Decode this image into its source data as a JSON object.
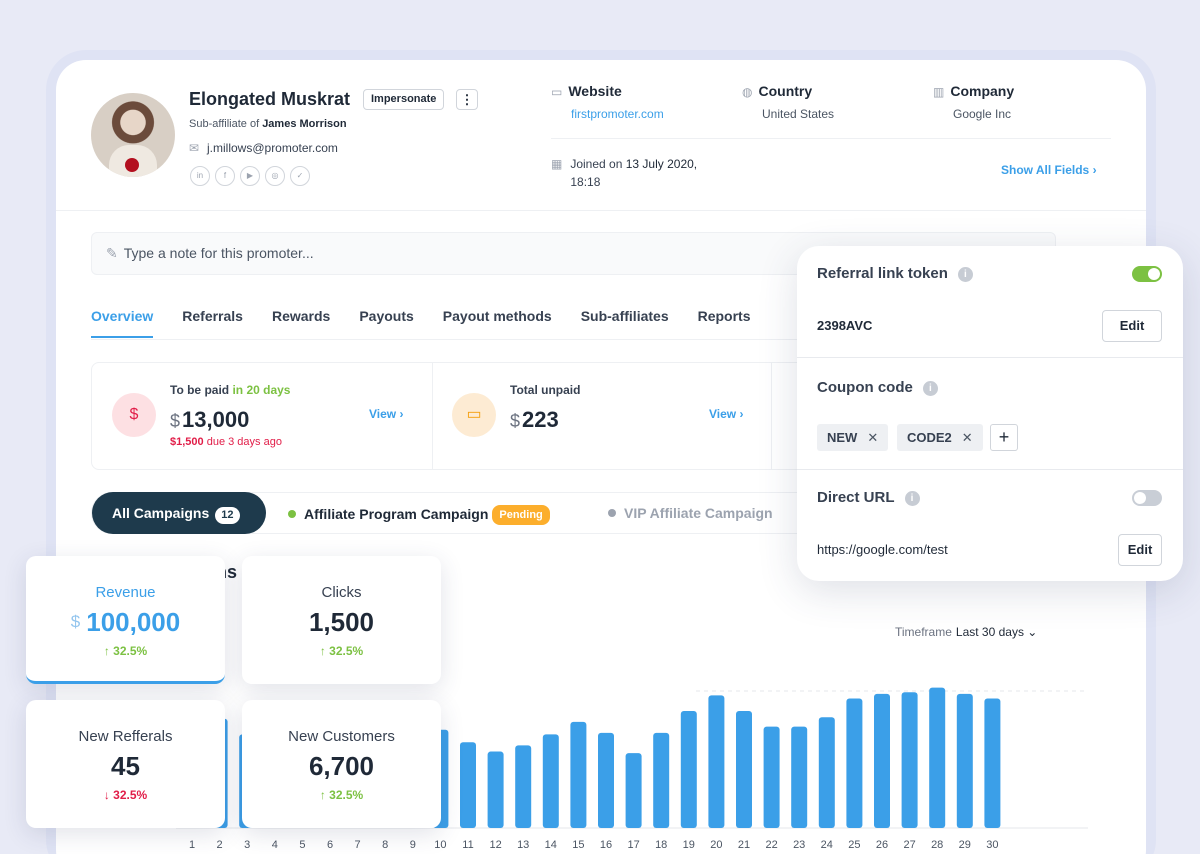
{
  "profile": {
    "name": "Elongated Muskrat",
    "impersonate_label": "Impersonate",
    "more_label": "⋮",
    "sub_prefix": "Sub-affiliate of",
    "parent": "James Morrison",
    "email": "j.millows@promoter.com",
    "socials": [
      "in",
      "f",
      "▶",
      "◎",
      "✓"
    ]
  },
  "fields": {
    "website_label": "Website",
    "website_value": "firstpromoter.com",
    "country_label": "Country",
    "country_value": "United States",
    "company_label": "Company",
    "company_value": "Google Inc",
    "joined_prefix": "Joined on",
    "joined_date": "13 July 2020,",
    "joined_time": "18:18",
    "show_all": "Show All Fields ›"
  },
  "note": {
    "placeholder": "Type a note for this promoter..."
  },
  "tabs": [
    "Overview",
    "Referrals",
    "Rewards",
    "Payouts",
    "Payout methods",
    "Sub-affiliates",
    "Reports"
  ],
  "stats": {
    "to_be_paid_label": "To be paid",
    "to_be_paid_in": "in 20 days",
    "to_be_paid_currency": "$",
    "to_be_paid_amount": "13,000",
    "due_amount": "$1,500",
    "due_text": "due 3 days ago",
    "unpaid_label": "Total unpaid",
    "unpaid_currency": "$",
    "unpaid_amount": "223",
    "view_label": "View ›"
  },
  "campaigns": {
    "all_label": "All Campaigns",
    "all_count": "12",
    "c1": "Affiliate Program Campaign",
    "c1_status": "Pending",
    "c2": "VIP Affiliate Campaign"
  },
  "section_title_partial": "ns",
  "timeframe": {
    "label": "Timeframe",
    "value": "Last 30 days ⌄"
  },
  "chart_data": {
    "type": "bar",
    "categories": [
      "1",
      "2",
      "3",
      "4",
      "5",
      "6",
      "7",
      "8",
      "9",
      "10",
      "11",
      "12",
      "13",
      "14",
      "15",
      "16",
      "17",
      "18",
      "19",
      "20",
      "21",
      "22",
      "23",
      "24",
      "25",
      "26",
      "27",
      "28",
      "29",
      "30"
    ],
    "values": [
      72,
      70,
      60,
      62,
      58,
      55,
      60,
      63,
      65,
      63,
      55,
      49,
      53,
      60,
      68,
      61,
      48,
      61,
      75,
      85,
      75,
      65,
      65,
      71,
      83,
      86,
      87,
      90,
      86,
      83
    ]
  },
  "referral": {
    "token_label": "Referral link token",
    "token_value": "2398AVC",
    "coupon_label": "Coupon code",
    "coupons": [
      "NEW",
      "CODE2"
    ],
    "direct_label": "Direct URL",
    "direct_value": "https://google.com/test",
    "edit_label": "Edit",
    "token_enabled": true,
    "direct_enabled": false
  },
  "kpis": {
    "revenue_label": "Revenue",
    "revenue_currency": "$",
    "revenue_value": "100,000",
    "revenue_change": "↑ 32.5%",
    "clicks_label": "Clicks",
    "clicks_value": "1,500",
    "clicks_change": "↑ 32.5%",
    "referrals_label": "New Refferals",
    "referrals_value": "45",
    "referrals_change": "↓ 32.5%",
    "customers_label": "New Customers",
    "customers_value": "6,700",
    "customers_change": "↑ 32.5%"
  },
  "colors": {
    "accent": "#3b9fe8",
    "dark": "#1e3a4c",
    "green": "#7cc142",
    "red": "#e11d48",
    "orange": "#fcae2c"
  }
}
